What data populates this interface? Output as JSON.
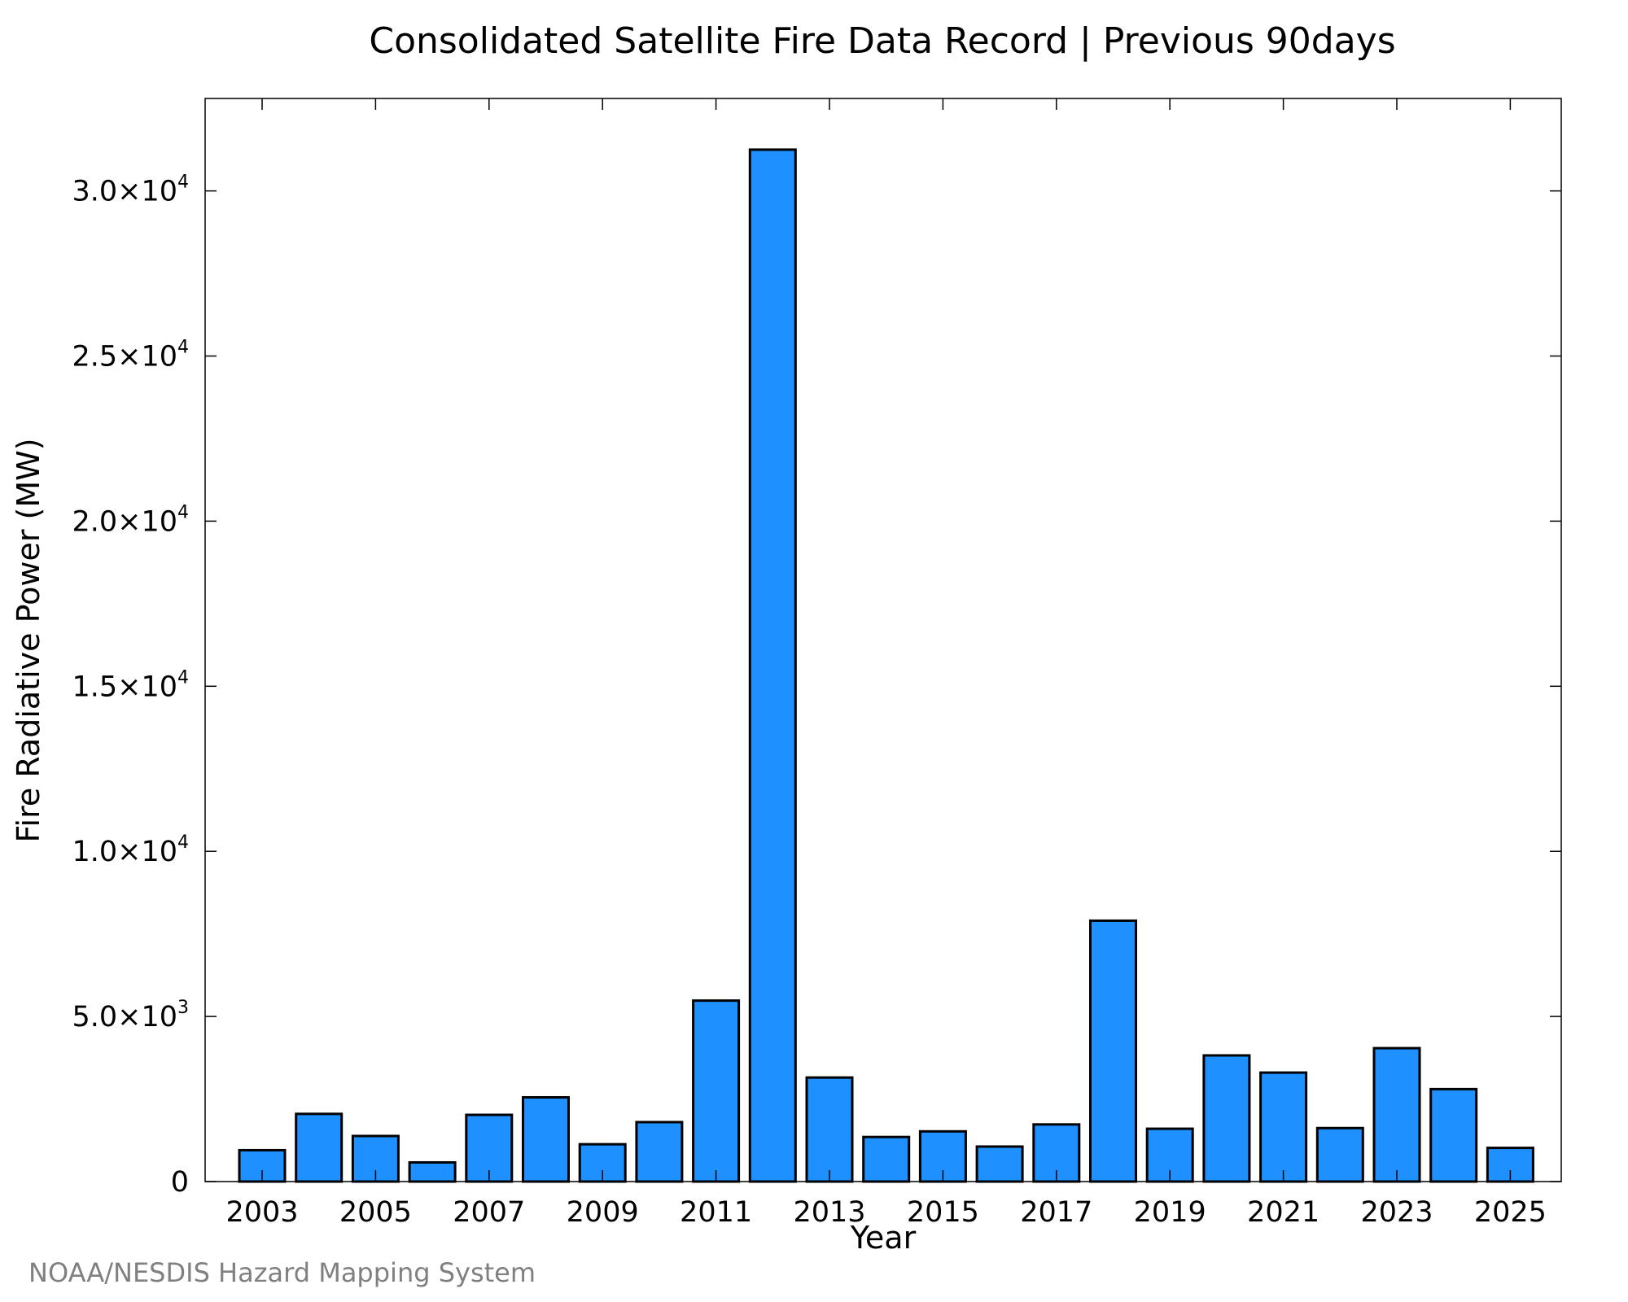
{
  "chart_data": {
    "type": "bar",
    "title": "Consolidated Satellite Fire Data Record | Previous 90days",
    "xlabel": "Year",
    "ylabel": "Fire Radiative Power (MW)",
    "categories": [
      "2003",
      "2004",
      "2005",
      "2006",
      "2007",
      "2008",
      "2009",
      "2010",
      "2011",
      "2012",
      "2013",
      "2014",
      "2015",
      "2016",
      "2017",
      "2018",
      "2019",
      "2020",
      "2021",
      "2022",
      "2023",
      "2024",
      "2025"
    ],
    "x_tick_labels": [
      "2003",
      "2005",
      "2007",
      "2009",
      "2011",
      "2013",
      "2015",
      "2017",
      "2019",
      "2021",
      "2023",
      "2025"
    ],
    "values": [
      950,
      2050,
      1380,
      580,
      2020,
      2550,
      1130,
      1800,
      5480,
      31250,
      3150,
      1350,
      1520,
      1060,
      1730,
      7900,
      1600,
      3820,
      3300,
      1620,
      4040,
      2800,
      1020
    ],
    "ylim": [
      0,
      32800
    ],
    "y_ticks": [
      {
        "value": 0,
        "mantissa": "0",
        "exp": ""
      },
      {
        "value": 5000,
        "mantissa": "5.0×10",
        "exp": "3"
      },
      {
        "value": 10000,
        "mantissa": "1.0×10",
        "exp": "4"
      },
      {
        "value": 15000,
        "mantissa": "1.5×10",
        "exp": "4"
      },
      {
        "value": 20000,
        "mantissa": "2.0×10",
        "exp": "4"
      },
      {
        "value": 25000,
        "mantissa": "2.5×10",
        "exp": "4"
      },
      {
        "value": 30000,
        "mantissa": "3.0×10",
        "exp": "4"
      }
    ],
    "bar_color": "#1e90ff",
    "grid": false,
    "legend": "none"
  },
  "credit": "NOAA/NESDIS Hazard Mapping System"
}
